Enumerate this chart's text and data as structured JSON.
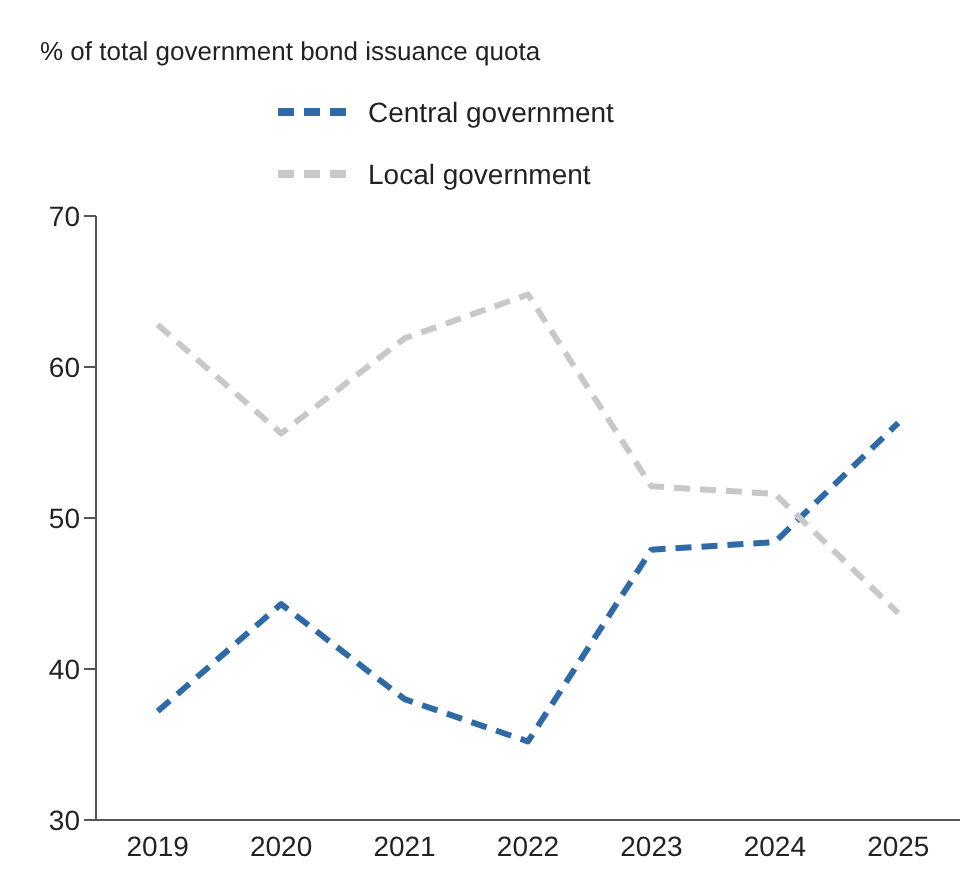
{
  "chart_data": {
    "type": "line",
    "annotations": [
      "% of total government bond issuance quota"
    ],
    "categories": [
      "2019",
      "2020",
      "2021",
      "2022",
      "2023",
      "2024",
      "2025"
    ],
    "series": [
      {
        "name": "Central government",
        "color": "#2e6aa6",
        "values": [
          37.2,
          44.3,
          38.0,
          35.2,
          47.9,
          48.4,
          56.3
        ]
      },
      {
        "name": "Local government",
        "color": "#c8c8c8",
        "values": [
          62.8,
          55.6,
          61.9,
          64.8,
          52.1,
          51.6,
          43.7
        ]
      }
    ],
    "ylim": [
      30,
      70
    ],
    "yticks": [
      30,
      40,
      50,
      60,
      70
    ],
    "grid": false,
    "legend": "top",
    "line_style": "dashed",
    "marker": "none"
  }
}
